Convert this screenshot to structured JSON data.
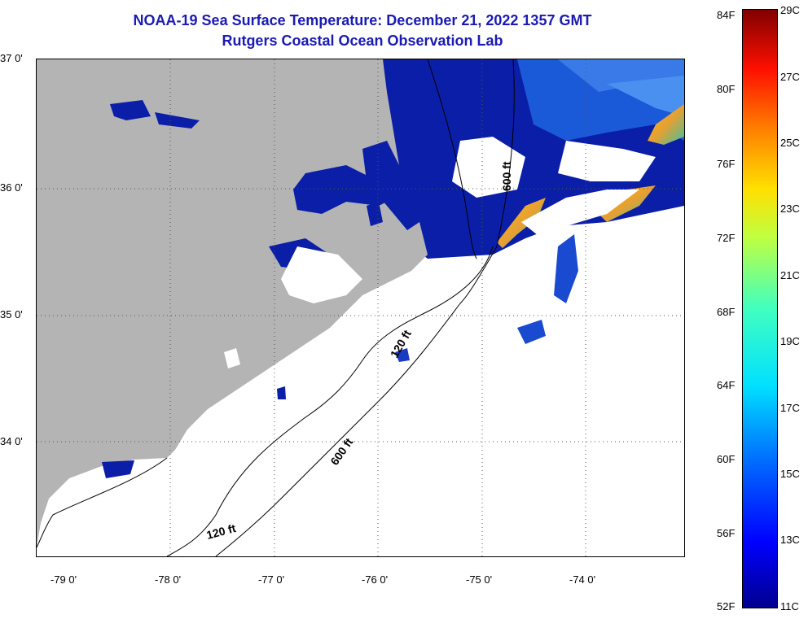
{
  "title": "NOAA-19 Sea Surface Temperature:  December 21, 2022 1357 GMT",
  "subtitle": "Rutgers Coastal Ocean Observation Lab",
  "colors": {
    "land": "#b4b4b4",
    "cloud_or_nodata": "#ffffff",
    "title": "#1a1ab4",
    "water_deep_blue": "#0a1ea8"
  },
  "latitude_labels": [
    "37 0'",
    "36 0'",
    "35 0'",
    "34 0'"
  ],
  "longitude_labels": [
    "-79 0'",
    "-78 0'",
    "-77 0'",
    "-76 0'",
    "-75 0'",
    "-74 0'"
  ],
  "contour_labels": [
    "120 ft",
    "600 ft",
    "120 ft",
    "600 ft"
  ],
  "colorbar": {
    "fahrenheit_labels": [
      "84F",
      "80F",
      "76F",
      "72F",
      "68F",
      "64F",
      "60F",
      "56F",
      "52F"
    ],
    "celsius_labels": [
      "29C",
      "27C",
      "25C",
      "23C",
      "21C",
      "19C",
      "17C",
      "15C",
      "13C",
      "11C"
    ],
    "range_c": [
      11,
      29
    ],
    "range_f": [
      52,
      84
    ]
  }
}
